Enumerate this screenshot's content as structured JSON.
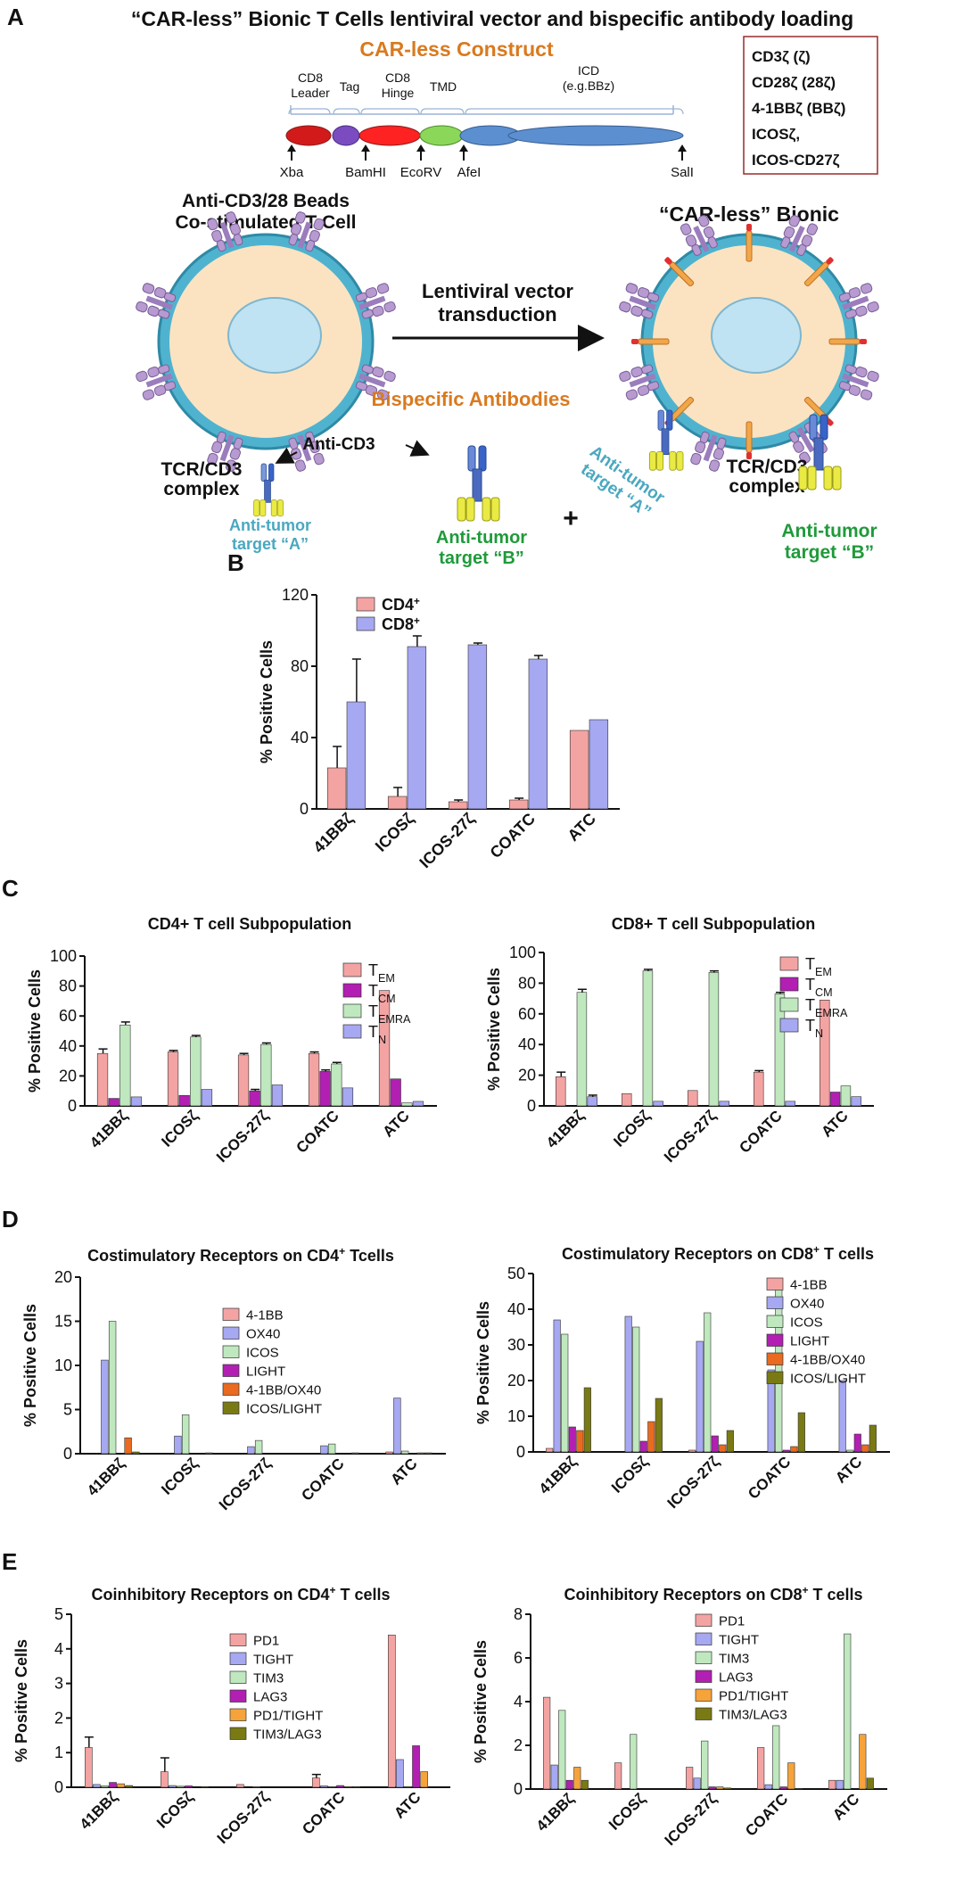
{
  "panel_a": {
    "letter": "A",
    "title": "“CAR-less” Bionic T Cells lentiviral vector and bispecific antibody  loading",
    "construct_title": "CAR-less Construct",
    "segment_labels": [
      "CD8\nLeader",
      "Tag",
      "CD8\nHinge",
      "TMD",
      "ICD\n(e.g.BBz)"
    ],
    "site_labels": [
      "Xba",
      "BamHI",
      "EcoRV",
      "AfeI",
      "SalI"
    ],
    "icd_options": [
      "CD3ζ (ζ)",
      "CD28ζ (28ζ)",
      "4-1BBζ (BBζ)",
      "ICOSζ,",
      "ICOS-CD27ζ"
    ],
    "left_cell_title": "Anti-CD3/28 Beads\nCo-stimulated T Cell",
    "right_cell_title": "“CAR-less” Bionic",
    "arrow_label": "Lentiviral vector\ntransduction",
    "tcr_label": "TCR/CD3\ncomplex",
    "bispecific_title": "Bispecific Antibodies",
    "anti_cd3": "Anti-CD3",
    "plus": "+",
    "anti_tumor_a": "Anti-tumor\ntarget “A”",
    "anti_tumor_b": "Anti-tumor\ntarget “B”",
    "colors": {
      "orange": "#d97a1f",
      "teal": "#4aa8c0",
      "green": "#1f9a3a",
      "box_border": "#9a2a2a"
    }
  },
  "chart_data": [
    {
      "id": "B",
      "type": "bar",
      "letter": "B",
      "title": "",
      "ylabel": "% Positive Cells",
      "ylim": [
        0,
        120
      ],
      "yticks": [
        0,
        40,
        80,
        120
      ],
      "categories": [
        "41BBζ",
        "ICOSζ",
        "ICOS-27ζ",
        "COATC",
        "ATC"
      ],
      "legend": {
        "position": "top-left"
      },
      "series": [
        {
          "name": "CD4",
          "sup": "+",
          "color": "#f4a3a3",
          "values": [
            23,
            7,
            4,
            5,
            44
          ],
          "errors": [
            12,
            5,
            1,
            1,
            0
          ]
        },
        {
          "name": "CD8",
          "sup": "+",
          "color": "#a6a8f2",
          "values": [
            60,
            91,
            92,
            84,
            50
          ],
          "errors": [
            24,
            6,
            1,
            2,
            0
          ]
        }
      ]
    },
    {
      "id": "C1",
      "type": "bar",
      "letter": "C",
      "title": "CD4+ T cell Subpopulation",
      "ylabel": "% Positive Cells",
      "ylim": [
        0,
        100
      ],
      "yticks": [
        0,
        20,
        40,
        60,
        80,
        100
      ],
      "categories": [
        "41BBζ",
        "ICOSζ",
        "ICOS-27ζ",
        "COATC",
        "ATC"
      ],
      "legend": {
        "position": "top-right"
      },
      "series": [
        {
          "name": "T",
          "sub": "EM",
          "color": "#f4a3a3",
          "values": [
            35,
            36,
            34,
            35,
            77
          ],
          "errors": [
            3,
            1,
            1,
            1,
            0
          ]
        },
        {
          "name": "T",
          "sub": "CM",
          "color": "#b21fb2",
          "values": [
            5,
            7,
            10,
            23,
            18
          ],
          "errors": [
            0,
            0,
            1,
            1,
            0
          ]
        },
        {
          "name": "T",
          "sub": "EMRA",
          "color": "#bfe8bf",
          "values": [
            54,
            46,
            41,
            28,
            2
          ],
          "errors": [
            2,
            1,
            1,
            1,
            0
          ]
        },
        {
          "name": "T",
          "sub": "N",
          "color": "#a6a8f2",
          "values": [
            6,
            11,
            14,
            12,
            3
          ],
          "errors": [
            0,
            0,
            0,
            0,
            0
          ]
        }
      ]
    },
    {
      "id": "C2",
      "type": "bar",
      "letter": "",
      "title": "CD8+ T cell Subpopulation",
      "ylabel": "% Positive Cells",
      "ylim": [
        0,
        100
      ],
      "yticks": [
        0,
        20,
        40,
        60,
        80,
        100
      ],
      "categories": [
        "41BBζ",
        "ICOSζ",
        "ICOS-27ζ",
        "COATC",
        "ATC"
      ],
      "legend": {
        "position": "top-right"
      },
      "series": [
        {
          "name": "T",
          "sub": "EM",
          "color": "#f4a3a3",
          "values": [
            19,
            8,
            10,
            22,
            69
          ],
          "errors": [
            3,
            0,
            0,
            1,
            0
          ]
        },
        {
          "name": "T",
          "sub": "CM",
          "color": "#b21fb2",
          "values": [
            0,
            0,
            0,
            0,
            9
          ],
          "errors": [
            0,
            0,
            0,
            0,
            0
          ]
        },
        {
          "name": "T",
          "sub": "EMRA",
          "color": "#bfe8bf",
          "values": [
            74,
            88,
            87,
            73,
            13
          ],
          "errors": [
            2,
            1,
            1,
            1,
            0
          ]
        },
        {
          "name": "T",
          "sub": "N",
          "color": "#a6a8f2",
          "values": [
            6,
            3,
            3,
            3,
            6
          ],
          "errors": [
            1,
            0,
            0,
            0,
            0
          ]
        }
      ]
    },
    {
      "id": "D1",
      "type": "bar",
      "letter": "D",
      "title": "Costimulatory Receptors on CD4",
      "title_sup": "+",
      "title_tail": " Tcells",
      "ylabel": "% Positive Cells",
      "ylim": [
        0,
        20
      ],
      "yticks": [
        0,
        5,
        10,
        15,
        20
      ],
      "categories": [
        "41BBζ",
        "ICOSζ",
        "ICOS-27ζ",
        "COATC",
        "ATC"
      ],
      "legend": {
        "position": "top-right"
      },
      "series": [
        {
          "name": "4-1BB",
          "color": "#f4a3a3",
          "values": [
            0,
            0,
            0,
            0,
            0.2
          ],
          "errors": [
            0,
            0,
            0,
            0,
            0
          ]
        },
        {
          "name": "OX40",
          "color": "#a6a8f2",
          "values": [
            10.6,
            2.0,
            0.8,
            0.9,
            6.3
          ],
          "errors": [
            0,
            0,
            0,
            0,
            0
          ]
        },
        {
          "name": "ICOS",
          "color": "#bfe8bf",
          "values": [
            15.0,
            4.4,
            1.5,
            1.1,
            0.3
          ],
          "errors": [
            0,
            0,
            0,
            0,
            0
          ]
        },
        {
          "name": "LIGHT",
          "color": "#b21fb2",
          "values": [
            0,
            0,
            0,
            0,
            0
          ],
          "errors": [
            0,
            0,
            0,
            0,
            0
          ]
        },
        {
          "name": "4-1BB/OX40",
          "color": "#ea6a1f",
          "values": [
            1.8,
            0,
            0,
            0,
            0.1
          ],
          "errors": [
            0,
            0,
            0,
            0,
            0
          ]
        },
        {
          "name": "ICOS/LIGHT",
          "color": "#7a7a14",
          "values": [
            0.2,
            0.1,
            0,
            0.1,
            0.1
          ],
          "errors": [
            0,
            0,
            0,
            0,
            0
          ]
        }
      ]
    },
    {
      "id": "D2",
      "type": "bar",
      "letter": "",
      "title": "Costimulatory Receptors on CD8",
      "title_sup": "+",
      "title_tail": " T cells",
      "ylabel": "% Positive Cells",
      "ylim": [
        0,
        50
      ],
      "yticks": [
        0,
        10,
        20,
        30,
        40,
        50
      ],
      "categories": [
        "41BBζ",
        "ICOSζ",
        "ICOS-27ζ",
        "COATC",
        "ATC"
      ],
      "legend": {
        "position": "top-right"
      },
      "series": [
        {
          "name": "4-1BB",
          "color": "#f4a3a3",
          "values": [
            1,
            0,
            0.5,
            0,
            0
          ],
          "errors": [
            0,
            0,
            0,
            0,
            0
          ]
        },
        {
          "name": "OX40",
          "color": "#a6a8f2",
          "values": [
            37,
            38,
            31,
            23,
            20
          ],
          "errors": [
            0,
            0,
            0,
            0,
            0
          ]
        },
        {
          "name": "ICOS",
          "color": "#bfe8bf",
          "values": [
            33,
            35,
            39,
            46,
            0.5
          ],
          "errors": [
            0,
            0,
            0,
            0,
            0
          ]
        },
        {
          "name": "LIGHT",
          "color": "#b21fb2",
          "values": [
            7,
            3,
            4.5,
            0.5,
            5
          ],
          "errors": [
            0,
            0,
            0,
            0,
            0
          ]
        },
        {
          "name": "4-1BB/OX40",
          "color": "#ea6a1f",
          "values": [
            6,
            8.5,
            2,
            1.5,
            2
          ],
          "errors": [
            0,
            0,
            0,
            0,
            0
          ]
        },
        {
          "name": "ICOS/LIGHT",
          "color": "#7a7a14",
          "values": [
            18,
            15,
            6,
            11,
            7.5
          ],
          "errors": [
            0,
            0,
            0,
            0,
            0
          ]
        }
      ]
    },
    {
      "id": "E1",
      "type": "bar",
      "letter": "E",
      "title": "Coinhibitory Receptors on CD4",
      "title_sup": "+",
      "title_tail": " T cells",
      "ylabel": "% Positive Cells",
      "ylim": [
        0,
        5
      ],
      "yticks": [
        0,
        1,
        2,
        3,
        4,
        5
      ],
      "categories": [
        "41BBζ",
        "ICOSζ",
        "ICOS-27ζ",
        "COATC",
        "ATC"
      ],
      "legend": {
        "position": "top-right"
      },
      "series": [
        {
          "name": "PD1",
          "color": "#f4a3a3",
          "values": [
            1.15,
            0.45,
            0.08,
            0.27,
            4.4
          ],
          "errors": [
            0.3,
            0.4,
            0,
            0.1,
            0
          ]
        },
        {
          "name": "TIGHT",
          "color": "#a6a8f2",
          "values": [
            0.08,
            0.05,
            0,
            0.04,
            0.8
          ],
          "errors": [
            0,
            0,
            0,
            0,
            0
          ]
        },
        {
          "name": "TIM3",
          "color": "#bfe8bf",
          "values": [
            0.04,
            0.03,
            0.02,
            0.02,
            0.02
          ],
          "errors": [
            0,
            0,
            0,
            0,
            0
          ]
        },
        {
          "name": "LAG3",
          "color": "#b21fb2",
          "values": [
            0.14,
            0.04,
            0,
            0.05,
            1.2
          ],
          "errors": [
            0,
            0,
            0,
            0,
            0
          ]
        },
        {
          "name": "PD1/TIGHT",
          "color": "#f5a33a",
          "values": [
            0.1,
            0,
            0,
            0.02,
            0.45
          ],
          "errors": [
            0,
            0,
            0,
            0,
            0
          ]
        },
        {
          "name": "TIM3/LAG3",
          "color": "#7a7a14",
          "values": [
            0.05,
            0.02,
            0,
            0.02,
            0
          ],
          "errors": [
            0,
            0,
            0,
            0,
            0
          ]
        }
      ]
    },
    {
      "id": "E2",
      "type": "bar",
      "letter": "",
      "title": "Coinhibitory Receptors on CD8",
      "title_sup": "+",
      "title_tail": " T cells",
      "ylabel": "% Positive Cells",
      "ylim": [
        0,
        8
      ],
      "yticks": [
        0,
        2,
        4,
        6,
        8
      ],
      "categories": [
        "41BBζ",
        "ICOSζ",
        "ICOS-27ζ",
        "COATC",
        "ATC"
      ],
      "legend": {
        "position": "top-right"
      },
      "series": [
        {
          "name": "PD1",
          "color": "#f4a3a3",
          "values": [
            4.2,
            1.2,
            1.0,
            1.9,
            0.4
          ],
          "errors": [
            0,
            0,
            0,
            0,
            0
          ]
        },
        {
          "name": "TIGHT",
          "color": "#a6a8f2",
          "values": [
            1.1,
            0,
            0.5,
            0.2,
            0.4
          ],
          "errors": [
            0,
            0,
            0,
            0,
            0
          ]
        },
        {
          "name": "TIM3",
          "color": "#bfe8bf",
          "values": [
            3.6,
            2.5,
            2.2,
            2.9,
            7.1
          ],
          "errors": [
            0,
            0,
            0,
            0,
            0
          ]
        },
        {
          "name": "LAG3",
          "color": "#b21fb2",
          "values": [
            0.4,
            0,
            0.1,
            0.1,
            0
          ],
          "errors": [
            0,
            0,
            0,
            0,
            0
          ]
        },
        {
          "name": "PD1/TIGHT",
          "color": "#f5a33a",
          "values": [
            1.0,
            0,
            0.1,
            1.2,
            2.5
          ],
          "errors": [
            0,
            0,
            0,
            0,
            0
          ]
        },
        {
          "name": "TIM3/LAG3",
          "color": "#7a7a14",
          "values": [
            0.4,
            0,
            0.05,
            0.02,
            0.5
          ],
          "errors": [
            0,
            0,
            0,
            0,
            0
          ]
        }
      ]
    }
  ]
}
